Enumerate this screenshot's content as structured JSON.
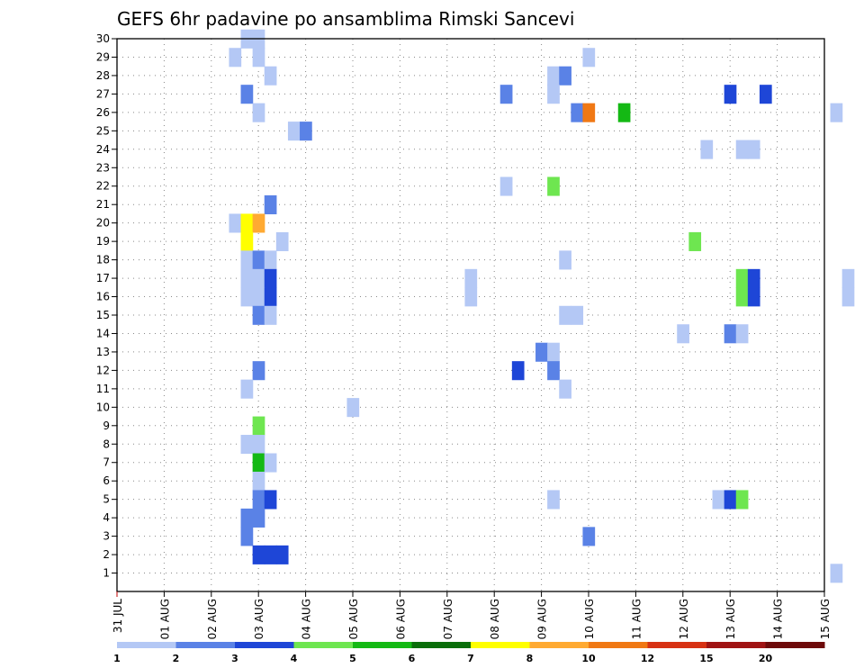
{
  "chart_data": {
    "type": "heatmap",
    "title": "GEFS 6hr padavine po ansamblima Rimski Sancevi",
    "xlabel": "",
    "ylabel": "",
    "x_tick_labels": [
      "31 JUL",
      "01 AUG",
      "02 AUG",
      "03 AUG",
      "04 AUG",
      "05 AUG",
      "06 AUG",
      "07 AUG",
      "08 AUG",
      "09 AUG",
      "10 AUG",
      "11 AUG",
      "12 AUG",
      "13 AUG",
      "14 AUG",
      "15 AUG"
    ],
    "x_step_hours": 6,
    "y_ticks": [
      1,
      2,
      3,
      4,
      5,
      6,
      7,
      8,
      9,
      10,
      11,
      12,
      13,
      14,
      15,
      16,
      17,
      18,
      19,
      20,
      21,
      22,
      23,
      24,
      25,
      26,
      27,
      28,
      29,
      30
    ],
    "ylim": [
      0,
      30
    ],
    "grid": true,
    "colorbar": {
      "labels": [
        "1",
        "2",
        "3",
        "4",
        "5",
        "6",
        "7",
        "8",
        "10",
        "12",
        "15",
        "20"
      ],
      "colors": [
        "#b4c8f5",
        "#5a82e6",
        "#1e46d7",
        "#6ee650",
        "#14b914",
        "#0a6e0a",
        "#ffff00",
        "#ffaa32",
        "#f07814",
        "#d73214",
        "#a01414",
        "#6e0a0a"
      ]
    },
    "cells": [
      {
        "member": 30,
        "step": 11,
        "bin": 0
      },
      {
        "member": 30,
        "step": 12,
        "bin": 0
      },
      {
        "member": 29,
        "step": 10,
        "bin": 0
      },
      {
        "member": 29,
        "step": 12,
        "bin": 0
      },
      {
        "member": 29,
        "step": 40,
        "bin": 0
      },
      {
        "member": 28,
        "step": 13,
        "bin": 0
      },
      {
        "member": 28,
        "step": 37,
        "bin": 0
      },
      {
        "member": 28,
        "step": 38,
        "bin": 1
      },
      {
        "member": 27,
        "step": 11,
        "bin": 1
      },
      {
        "member": 27,
        "step": 33,
        "bin": 1
      },
      {
        "member": 27,
        "step": 37,
        "bin": 0
      },
      {
        "member": 27,
        "step": 52,
        "bin": 2
      },
      {
        "member": 27,
        "step": 55,
        "bin": 2
      },
      {
        "member": 26,
        "step": 12,
        "bin": 0
      },
      {
        "member": 26,
        "step": 39,
        "bin": 1
      },
      {
        "member": 26,
        "step": 40,
        "bin": 8
      },
      {
        "member": 26,
        "step": 43,
        "bin": 4
      },
      {
        "member": 26,
        "step": 61,
        "bin": 0
      },
      {
        "member": 25,
        "step": 15,
        "bin": 0
      },
      {
        "member": 25,
        "step": 16,
        "bin": 1
      },
      {
        "member": 24,
        "step": 50,
        "bin": 0
      },
      {
        "member": 24,
        "step": 53,
        "bin": 0
      },
      {
        "member": 24,
        "step": 54,
        "bin": 0
      },
      {
        "member": 22,
        "step": 33,
        "bin": 0
      },
      {
        "member": 22,
        "step": 37,
        "bin": 3
      },
      {
        "member": 21,
        "step": 13,
        "bin": 1
      },
      {
        "member": 20,
        "step": 10,
        "bin": 0
      },
      {
        "member": 20,
        "step": 11,
        "bin": 6
      },
      {
        "member": 20,
        "step": 12,
        "bin": 7
      },
      {
        "member": 19,
        "step": 11,
        "bin": 6
      },
      {
        "member": 19,
        "step": 14,
        "bin": 0
      },
      {
        "member": 19,
        "step": 49,
        "bin": 3
      },
      {
        "member": 18,
        "step": 11,
        "bin": 0
      },
      {
        "member": 18,
        "step": 12,
        "bin": 1
      },
      {
        "member": 18,
        "step": 13,
        "bin": 0
      },
      {
        "member": 18,
        "step": 38,
        "bin": 0
      },
      {
        "member": 17,
        "step": 11,
        "bin": 0
      },
      {
        "member": 17,
        "step": 12,
        "bin": 0
      },
      {
        "member": 17,
        "step": 13,
        "bin": 2
      },
      {
        "member": 17,
        "step": 30,
        "bin": 0
      },
      {
        "member": 17,
        "step": 53,
        "bin": 3
      },
      {
        "member": 17,
        "step": 54,
        "bin": 2
      },
      {
        "member": 17,
        "step": 62,
        "bin": 0
      },
      {
        "member": 16,
        "step": 11,
        "bin": 0
      },
      {
        "member": 16,
        "step": 12,
        "bin": 0
      },
      {
        "member": 16,
        "step": 13,
        "bin": 2
      },
      {
        "member": 16,
        "step": 30,
        "bin": 0
      },
      {
        "member": 16,
        "step": 53,
        "bin": 3
      },
      {
        "member": 16,
        "step": 54,
        "bin": 2
      },
      {
        "member": 16,
        "step": 62,
        "bin": 0
      },
      {
        "member": 15,
        "step": 12,
        "bin": 1
      },
      {
        "member": 15,
        "step": 13,
        "bin": 0
      },
      {
        "member": 15,
        "step": 38,
        "bin": 0
      },
      {
        "member": 15,
        "step": 39,
        "bin": 0
      },
      {
        "member": 14,
        "step": 48,
        "bin": 0
      },
      {
        "member": 14,
        "step": 52,
        "bin": 1
      },
      {
        "member": 14,
        "step": 53,
        "bin": 0
      },
      {
        "member": 13,
        "step": 36,
        "bin": 1
      },
      {
        "member": 13,
        "step": 37,
        "bin": 0
      },
      {
        "member": 12,
        "step": 12,
        "bin": 1
      },
      {
        "member": 12,
        "step": 34,
        "bin": 2
      },
      {
        "member": 12,
        "step": 37,
        "bin": 1
      },
      {
        "member": 11,
        "step": 11,
        "bin": 0
      },
      {
        "member": 11,
        "step": 38,
        "bin": 0
      },
      {
        "member": 10,
        "step": 20,
        "bin": 0
      },
      {
        "member": 9,
        "step": 12,
        "bin": 3
      },
      {
        "member": 8,
        "step": 11,
        "bin": 0
      },
      {
        "member": 8,
        "step": 12,
        "bin": 0
      },
      {
        "member": 7,
        "step": 12,
        "bin": 4
      },
      {
        "member": 7,
        "step": 13,
        "bin": 0
      },
      {
        "member": 6,
        "step": 12,
        "bin": 0
      },
      {
        "member": 5,
        "step": 12,
        "bin": 1
      },
      {
        "member": 5,
        "step": 13,
        "bin": 2
      },
      {
        "member": 5,
        "step": 37,
        "bin": 0
      },
      {
        "member": 5,
        "step": 51,
        "bin": 0
      },
      {
        "member": 5,
        "step": 52,
        "bin": 2
      },
      {
        "member": 5,
        "step": 53,
        "bin": 3
      },
      {
        "member": 4,
        "step": 11,
        "bin": 1
      },
      {
        "member": 4,
        "step": 12,
        "bin": 1
      },
      {
        "member": 3,
        "step": 11,
        "bin": 1
      },
      {
        "member": 3,
        "step": 40,
        "bin": 1
      },
      {
        "member": 2,
        "step": 12,
        "bin": 2
      },
      {
        "member": 2,
        "step": 13,
        "bin": 2
      },
      {
        "member": 2,
        "step": 14,
        "bin": 2
      },
      {
        "member": 1,
        "step": 61,
        "bin": 0
      }
    ]
  }
}
